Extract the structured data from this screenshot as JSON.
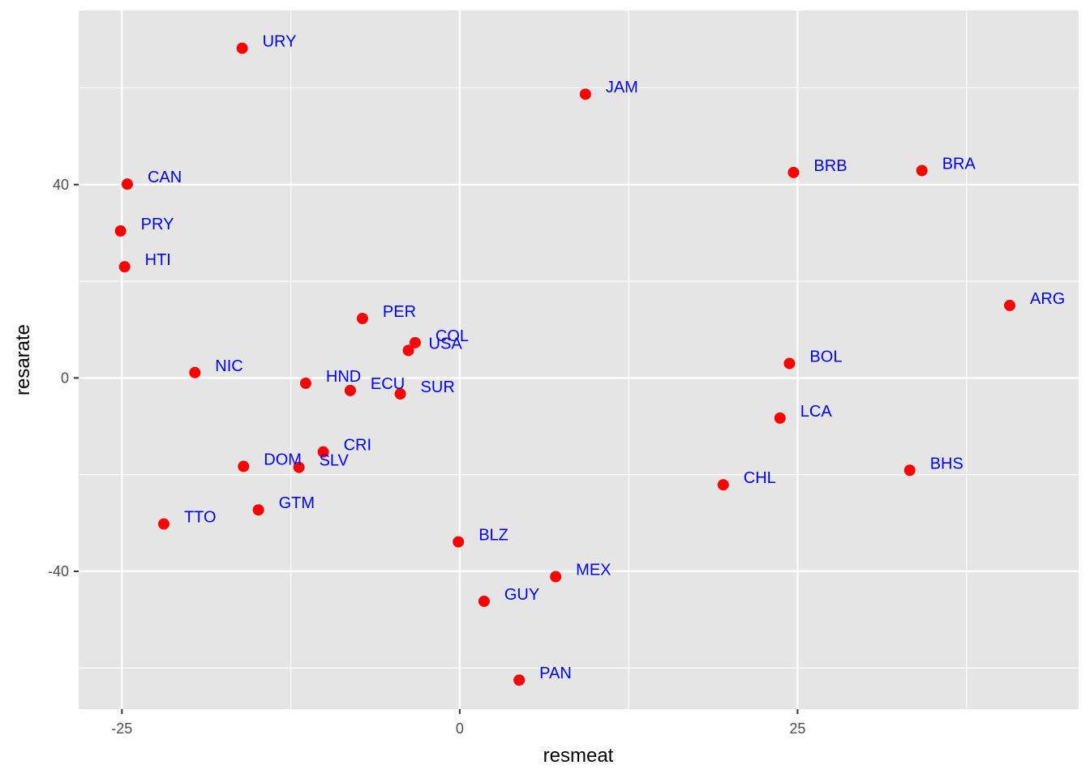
{
  "chart_data": {
    "type": "scatter",
    "title": "",
    "xlabel": "resmeat",
    "ylabel": "resarate",
    "xlim": [
      -28.2,
      45.8
    ],
    "ylim": [
      -68.5,
      76
    ],
    "x_ticks": [
      -25,
      0,
      25
    ],
    "y_ticks": [
      -40,
      0,
      40
    ],
    "x_minor_ticks": [
      -12.5,
      12.5,
      37.5
    ],
    "y_minor_ticks": [
      -60,
      -20,
      20,
      60
    ],
    "grid": true,
    "point_color": "#ff0000",
    "label_color": "#0000ff",
    "panel_background": "#e5e5e5",
    "grid_color": "#ffffff",
    "points": [
      {
        "label": "URY",
        "x": -16.1,
        "y": 68.2
      },
      {
        "label": "JAM",
        "x": 9.3,
        "y": 58.7
      },
      {
        "label": "CAN",
        "x": -24.6,
        "y": 40.1
      },
      {
        "label": "BRB",
        "x": 24.7,
        "y": 42.5
      },
      {
        "label": "BRA",
        "x": 34.2,
        "y": 42.9
      },
      {
        "label": "PRY",
        "x": -25.1,
        "y": 30.4
      },
      {
        "label": "HTI",
        "x": -24.8,
        "y": 23.0
      },
      {
        "label": "ARG",
        "x": 40.7,
        "y": 15.0
      },
      {
        "label": "PER",
        "x": -7.2,
        "y": 12.3
      },
      {
        "label": "COL",
        "x": -3.3,
        "y": 7.3
      },
      {
        "label": "USA",
        "x": -3.8,
        "y": 5.7
      },
      {
        "label": "BOL",
        "x": 24.4,
        "y": 3.0
      },
      {
        "label": "NIC",
        "x": -19.6,
        "y": 1.1
      },
      {
        "label": "HND",
        "x": -11.4,
        "y": -1.1
      },
      {
        "label": "ECU",
        "x": -8.1,
        "y": -2.6
      },
      {
        "label": "SUR",
        "x": -4.4,
        "y": -3.3
      },
      {
        "label": "LCA",
        "x": 23.7,
        "y": -8.3
      },
      {
        "label": "CRI",
        "x": -10.1,
        "y": -15.3
      },
      {
        "label": "DOM",
        "x": -16.0,
        "y": -18.3
      },
      {
        "label": "SLV",
        "x": -11.9,
        "y": -18.5
      },
      {
        "label": "BHS",
        "x": 33.3,
        "y": -19.1
      },
      {
        "label": "CHL",
        "x": 19.5,
        "y": -22.1
      },
      {
        "label": "GTM",
        "x": -14.9,
        "y": -27.3
      },
      {
        "label": "TTO",
        "x": -21.9,
        "y": -30.2
      },
      {
        "label": "BLZ",
        "x": -0.1,
        "y": -33.9
      },
      {
        "label": "MEX",
        "x": 7.1,
        "y": -41.1
      },
      {
        "label": "GUY",
        "x": 1.8,
        "y": -46.2
      },
      {
        "label": "PAN",
        "x": 4.4,
        "y": -62.5
      }
    ]
  }
}
